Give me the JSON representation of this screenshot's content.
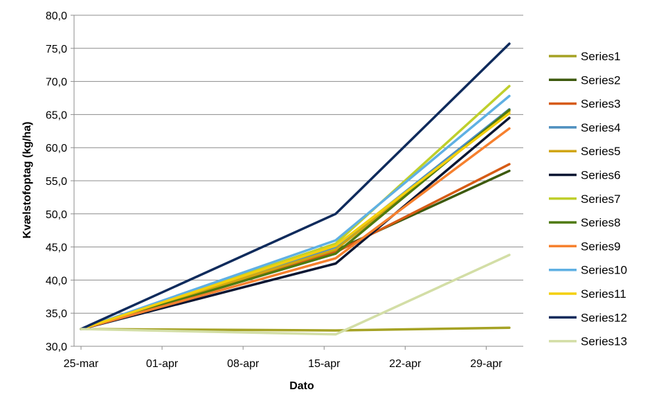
{
  "chart_data": {
    "type": "line",
    "title": "",
    "xlabel": "Dato",
    "ylabel": "Kvælstofoptag (kg/ha)",
    "x_ticks": [
      "25-mar",
      "01-apr",
      "08-apr",
      "15-apr",
      "22-apr",
      "29-apr"
    ],
    "x_tick_days": [
      0,
      7,
      14,
      21,
      28,
      35
    ],
    "x": [
      0,
      22,
      37
    ],
    "ylim": [
      30,
      80
    ],
    "y_ticks": [
      "30,0",
      "35,0",
      "40,0",
      "45,0",
      "50,0",
      "55,0",
      "60,0",
      "65,0",
      "70,0",
      "75,0",
      "80,0"
    ],
    "y_tick_values": [
      30,
      35,
      40,
      45,
      50,
      55,
      60,
      65,
      70,
      75,
      80
    ],
    "grid": true,
    "legend_position": "right",
    "series": [
      {
        "name": "Series1",
        "color": "#a5a224",
        "values": [
          32.6,
          32.4,
          32.8
        ]
      },
      {
        "name": "Series2",
        "color": "#3d5a0e",
        "values": [
          32.6,
          44.5,
          56.5
        ]
      },
      {
        "name": "Series3",
        "color": "#d65b15",
        "values": [
          32.6,
          44.2,
          57.5
        ]
      },
      {
        "name": "Series4",
        "color": "#4e8fbf",
        "values": [
          32.6,
          45.0,
          65.8
        ]
      },
      {
        "name": "Series5",
        "color": "#d1a613",
        "values": [
          32.6,
          44.6,
          65.5
        ]
      },
      {
        "name": "Series6",
        "color": "#0b1632",
        "values": [
          32.6,
          42.5,
          64.5
        ]
      },
      {
        "name": "Series7",
        "color": "#bfcf2c",
        "values": [
          32.6,
          45.5,
          69.3
        ]
      },
      {
        "name": "Series8",
        "color": "#4f7a10",
        "values": [
          32.6,
          44.0,
          65.7
        ]
      },
      {
        "name": "Series9",
        "color": "#f6802e",
        "values": [
          32.6,
          43.3,
          62.9
        ]
      },
      {
        "name": "Series10",
        "color": "#5fb0e3",
        "values": [
          32.6,
          46.0,
          67.8
        ]
      },
      {
        "name": "Series11",
        "color": "#f4cf0d",
        "values": [
          32.6,
          45.2,
          65.2
        ]
      },
      {
        "name": "Series12",
        "color": "#0f2b5c",
        "values": [
          32.6,
          50.0,
          75.7
        ]
      },
      {
        "name": "Series13",
        "color": "#d3dea6",
        "values": [
          32.6,
          31.8,
          43.8
        ]
      }
    ]
  }
}
